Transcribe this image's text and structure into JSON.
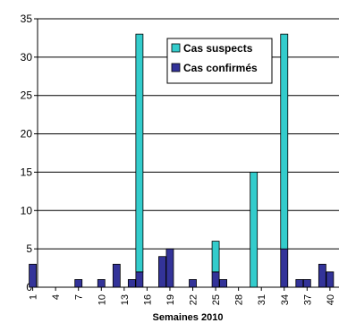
{
  "chart_data": {
    "type": "bar",
    "stacked": true,
    "title": "",
    "xlabel": "Semaines 2010",
    "ylabel": "",
    "ylim": [
      0,
      35
    ],
    "yticks": [
      0,
      5,
      10,
      15,
      20,
      25,
      30,
      35
    ],
    "grid": true,
    "legend_position": "top-right",
    "x": [
      1,
      2,
      3,
      4,
      5,
      6,
      7,
      8,
      9,
      10,
      11,
      12,
      13,
      14,
      15,
      16,
      17,
      18,
      19,
      20,
      21,
      22,
      23,
      24,
      25,
      26,
      27,
      28,
      29,
      30,
      31,
      32,
      33,
      34,
      35,
      36,
      37,
      38,
      39,
      40
    ],
    "xtick_labels": [
      "1",
      "4",
      "7",
      "10",
      "13",
      "16",
      "19",
      "22",
      "25",
      "28",
      "31",
      "34",
      "37",
      "40"
    ],
    "series": [
      {
        "name": "Cas confirmés",
        "color": "#333399",
        "values": [
          3,
          0,
          0,
          0,
          0,
          0,
          1,
          0,
          0,
          1,
          0,
          3,
          0,
          1,
          2,
          0,
          0,
          4,
          5,
          0,
          0,
          1,
          0,
          0,
          2,
          1,
          0,
          0,
          0,
          0,
          0,
          0,
          0,
          5,
          0,
          1,
          1,
          0,
          3,
          2
        ]
      },
      {
        "name": "Cas suspects",
        "color": "#33CCCC",
        "values": [
          0,
          0,
          0,
          0,
          0,
          0,
          0,
          0,
          0,
          0,
          0,
          0,
          0,
          0,
          31,
          0,
          0,
          0,
          0,
          0,
          0,
          0,
          0,
          0,
          4,
          0,
          0,
          0,
          0,
          15,
          0,
          0,
          0,
          28,
          0,
          0,
          0,
          0,
          0,
          0
        ]
      }
    ],
    "legend_order": [
      "Cas suspects",
      "Cas confirmés"
    ]
  }
}
